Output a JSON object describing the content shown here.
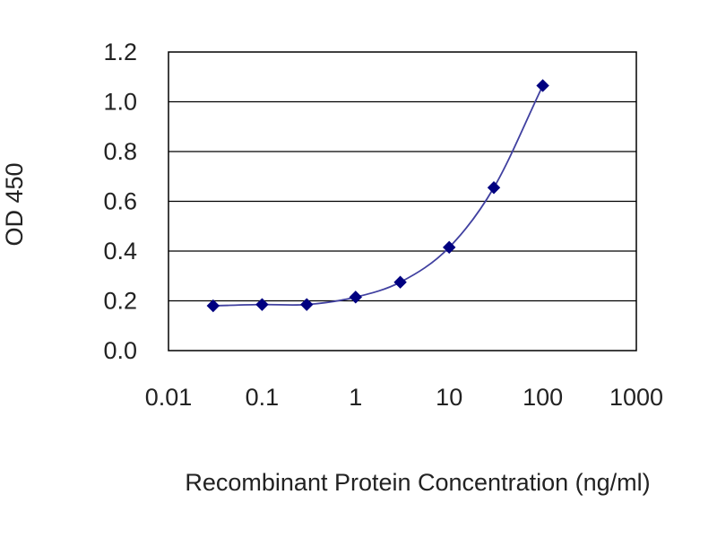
{
  "chart_data": {
    "type": "scatter",
    "xlabel": "Recombinant Protein Concentration (ng/ml)",
    "ylabel": "OD 450",
    "x_scale": "log",
    "xlim": [
      0.01,
      1000
    ],
    "ylim": [
      0.0,
      1.2
    ],
    "x_ticks": [
      0.01,
      0.1,
      1,
      10,
      100,
      1000
    ],
    "x_tick_labels": [
      "0.01",
      "0.1",
      "1",
      "10",
      "100",
      "1000"
    ],
    "y_ticks": [
      0.0,
      0.2,
      0.4,
      0.6,
      0.8,
      1.0,
      1.2
    ],
    "y_tick_labels": [
      "0.0",
      "0.2",
      "0.4",
      "0.6",
      "0.8",
      "1.0",
      "1.2"
    ],
    "grid": "horizontal",
    "legend": "none",
    "series": [
      {
        "points": [
          {
            "x": 0.03,
            "y": 0.18
          },
          {
            "x": 0.1,
            "y": 0.185
          },
          {
            "x": 0.3,
            "y": 0.185
          },
          {
            "x": 1,
            "y": 0.215
          },
          {
            "x": 3,
            "y": 0.275
          },
          {
            "x": 10,
            "y": 0.415
          },
          {
            "x": 30,
            "y": 0.655
          },
          {
            "x": 100,
            "y": 1.065
          }
        ],
        "fit_curve": true
      }
    ],
    "colors": {
      "marker": "#000080",
      "curve": "#4040a0",
      "grid": "#000000",
      "frame": "#000000"
    }
  }
}
